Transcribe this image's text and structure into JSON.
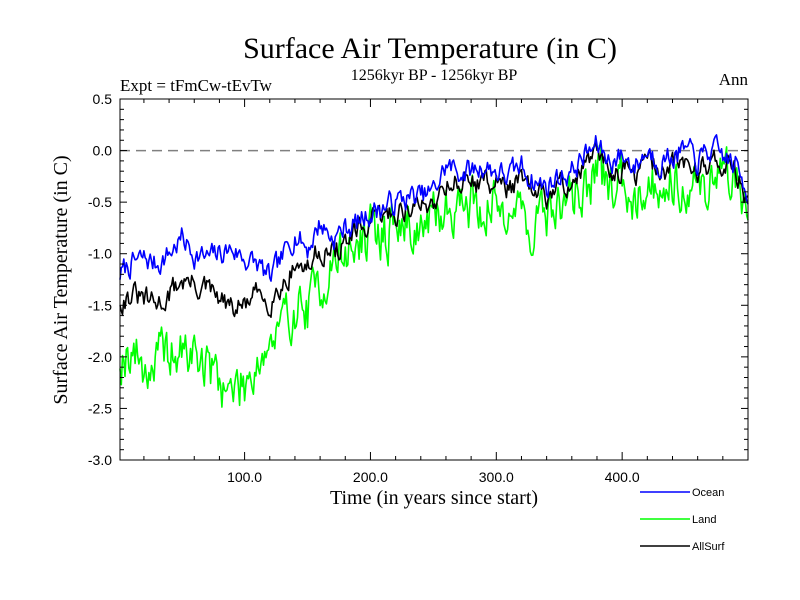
{
  "chart_data": {
    "type": "line",
    "title": "Surface Air Temperature (in C)",
    "subtitle": "1256kyr BP - 1256kyr BP",
    "experiment_label": "Expt = tFmCw-tEvTw",
    "period_label": "Ann",
    "xlabel": "Time (in years since start)",
    "ylabel": "Surface Air Temperature (in C)",
    "xlim": [
      1,
      500
    ],
    "ylim": [
      -3.0,
      0.5
    ],
    "x_ticks": [
      100,
      200,
      300,
      400
    ],
    "x_tick_labels": [
      "100.0",
      "200.0",
      "300.0",
      "400.0"
    ],
    "y_ticks": [
      -3.0,
      -2.5,
      -2.0,
      -1.5,
      -1.0,
      -0.5,
      0.0,
      0.5
    ],
    "y_tick_labels": [
      "-3.0",
      "-2.5",
      "-2.0",
      "-1.5",
      "-1.0",
      "-0.5",
      "0.0",
      "0.5"
    ],
    "reference_line": {
      "y": 0.0,
      "style": "dashed",
      "color": "#808080"
    },
    "legend_position": "bottom-right",
    "series": [
      {
        "name": "Ocean",
        "color": "#0000ff",
        "anchors_x": [
          1,
          10,
          20,
          30,
          40,
          50,
          60,
          70,
          80,
          90,
          100,
          110,
          120,
          130,
          140,
          150,
          160,
          170,
          180,
          190,
          200,
          210,
          220,
          230,
          240,
          250,
          260,
          270,
          280,
          290,
          300,
          310,
          320,
          330,
          340,
          350,
          360,
          370,
          380,
          390,
          400,
          410,
          420,
          430,
          440,
          450,
          460,
          470,
          480,
          490,
          500
        ],
        "anchors_y": [
          -1.2,
          -1.1,
          -1.05,
          -1.1,
          -1.0,
          -0.85,
          -1.0,
          -1.05,
          -1.0,
          -0.95,
          -1.05,
          -1.1,
          -1.25,
          -1.05,
          -0.8,
          -0.95,
          -0.7,
          -0.85,
          -0.75,
          -0.7,
          -0.6,
          -0.55,
          -0.5,
          -0.45,
          -0.45,
          -0.4,
          -0.15,
          -0.2,
          -0.2,
          -0.15,
          -0.2,
          -0.25,
          -0.15,
          -0.3,
          -0.35,
          -0.25,
          -0.2,
          -0.05,
          0.05,
          -0.1,
          -0.05,
          -0.15,
          0.0,
          -0.1,
          -0.05,
          0.0,
          -0.1,
          0.0,
          -0.05,
          -0.15,
          -0.4
        ],
        "noise_amplitude": 0.1,
        "seed": 7
      },
      {
        "name": "Land",
        "color": "#00ff00",
        "anchors_x": [
          1,
          10,
          20,
          30,
          40,
          50,
          60,
          70,
          80,
          90,
          100,
          110,
          120,
          130,
          140,
          150,
          160,
          170,
          180,
          190,
          200,
          210,
          220,
          230,
          240,
          250,
          260,
          270,
          280,
          290,
          300,
          310,
          320,
          330,
          340,
          350,
          360,
          370,
          380,
          390,
          400,
          410,
          420,
          430,
          440,
          450,
          460,
          470,
          480,
          490,
          500
        ],
        "anchors_y": [
          -2.0,
          -1.9,
          -2.1,
          -2.05,
          -1.95,
          -2.0,
          -1.95,
          -2.1,
          -2.2,
          -2.35,
          -2.25,
          -2.0,
          -1.9,
          -1.75,
          -1.5,
          -1.55,
          -1.3,
          -1.1,
          -1.0,
          -0.9,
          -0.85,
          -0.8,
          -0.75,
          -0.7,
          -0.75,
          -0.7,
          -0.55,
          -0.5,
          -0.5,
          -0.55,
          -0.55,
          -0.5,
          -0.6,
          -0.75,
          -0.6,
          -0.55,
          -0.45,
          -0.35,
          -0.25,
          -0.35,
          -0.3,
          -0.4,
          -0.3,
          -0.35,
          -0.25,
          -0.3,
          -0.4,
          -0.3,
          -0.2,
          -0.25,
          -0.6
        ],
        "noise_amplitude": 0.22,
        "seed": 19
      },
      {
        "name": "AllSurf",
        "color": "#000000",
        "anchors_x": [
          1,
          10,
          20,
          30,
          40,
          50,
          60,
          70,
          80,
          90,
          100,
          110,
          120,
          130,
          140,
          150,
          160,
          170,
          180,
          190,
          200,
          210,
          220,
          230,
          240,
          250,
          260,
          270,
          280,
          290,
          300,
          310,
          320,
          330,
          340,
          350,
          360,
          370,
          380,
          390,
          400,
          410,
          420,
          430,
          440,
          450,
          460,
          470,
          480,
          490,
          500
        ],
        "anchors_y": [
          -1.45,
          -1.4,
          -1.45,
          -1.5,
          -1.4,
          -1.25,
          -1.3,
          -1.35,
          -1.45,
          -1.55,
          -1.5,
          -1.4,
          -1.45,
          -1.3,
          -1.1,
          -1.15,
          -0.95,
          -1.0,
          -0.9,
          -0.8,
          -0.7,
          -0.65,
          -0.6,
          -0.55,
          -0.55,
          -0.5,
          -0.3,
          -0.3,
          -0.3,
          -0.3,
          -0.3,
          -0.35,
          -0.3,
          -0.45,
          -0.45,
          -0.35,
          -0.3,
          -0.15,
          -0.05,
          -0.2,
          -0.15,
          -0.25,
          -0.1,
          -0.2,
          -0.15,
          -0.1,
          -0.2,
          -0.1,
          -0.1,
          -0.2,
          -0.45
        ],
        "noise_amplitude": 0.1,
        "seed": 31
      }
    ]
  }
}
